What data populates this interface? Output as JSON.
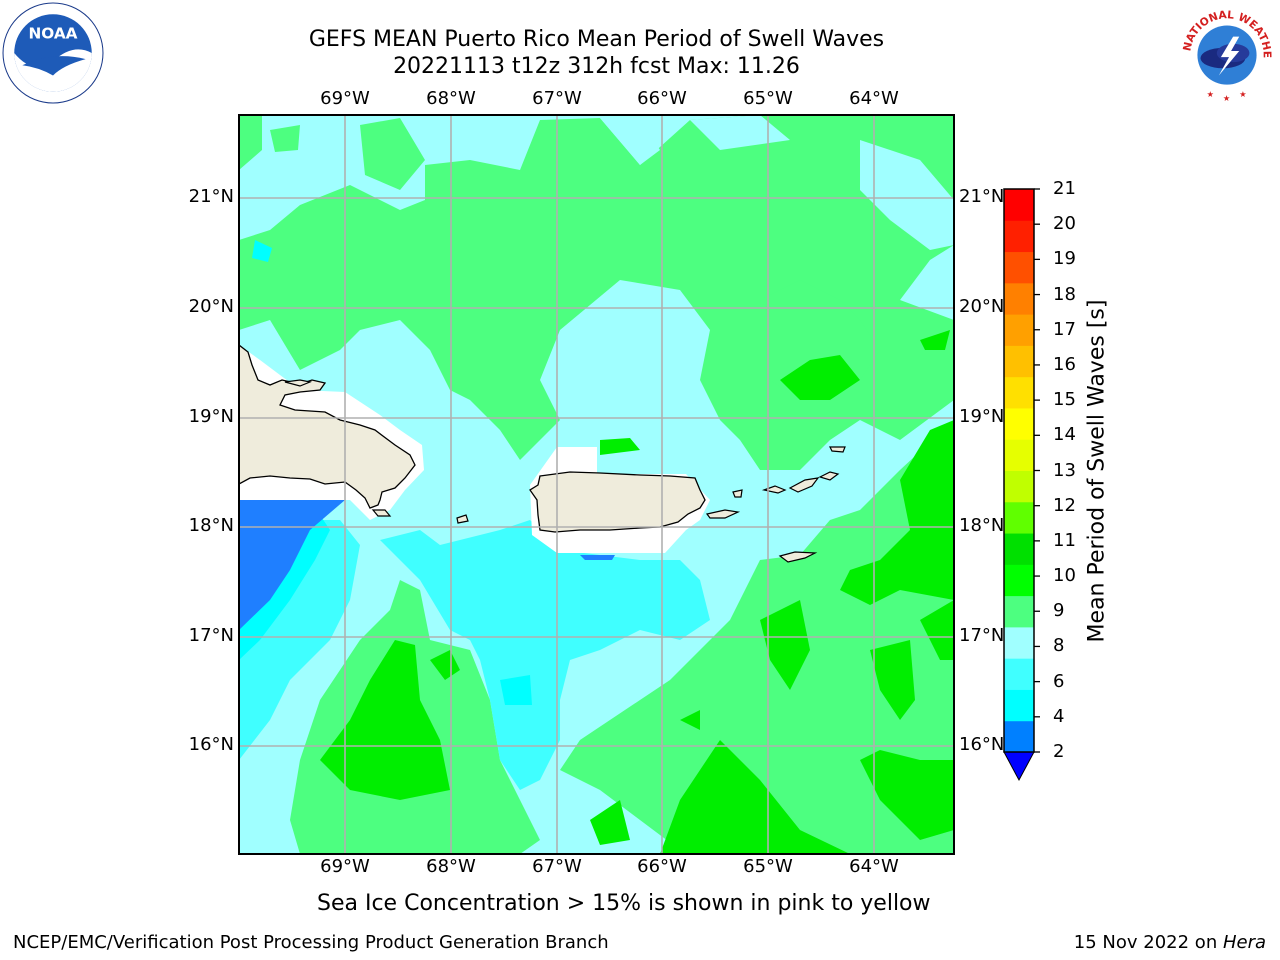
{
  "header": {
    "title_line1": "GEFS MEAN Puerto Rico Mean Period of Swell Waves",
    "title_line2": "20221113 t12z 312h fcst   Max: 11.26"
  },
  "logos": {
    "left": {
      "text": "NOAA",
      "ring_text": "NATIONAL OCEANIC AND ATMOSPHERIC ADMINISTRATION · U.S. DEPARTMENT OF COMMERCE",
      "icon": "noaa-logo"
    },
    "right": {
      "ring_text": "NATIONAL WEATHER SERVICE",
      "icon": "nws-logo"
    }
  },
  "map": {
    "lon_labels": [
      "69°W",
      "68°W",
      "67°W",
      "66°W",
      "65°W",
      "64°W"
    ],
    "lat_labels": [
      "21°N",
      "20°N",
      "19°N",
      "18°N",
      "17°N",
      "16°N"
    ],
    "land_color": "#efecdc",
    "no_data_color": "#ffffff",
    "grid_color": "#b0b0b0"
  },
  "colorbar": {
    "label": "Mean Period of Swell Waves [s]",
    "ticks": [
      "21",
      "20",
      "19",
      "18",
      "17",
      "16",
      "15",
      "14",
      "13",
      "12",
      "11",
      "10",
      "9",
      "8",
      "6",
      "4",
      "2"
    ],
    "colors": [
      "#0000ff",
      "#0080ff",
      "#00ffff",
      "#40ffff",
      "#a0ffff",
      "#4dff80",
      "#00ff00",
      "#00e000",
      "#60ff00",
      "#c0ff00",
      "#e6ff00",
      "#ffff00",
      "#ffe000",
      "#ffc000",
      "#ffa000",
      "#ff8000",
      "#ff5000",
      "#ff2000",
      "#ff0000"
    ]
  },
  "subtitle": "Sea Ice Concentration > 15% is shown in pink to yellow",
  "footer": {
    "left": "NCEP/EMC/Verification Post Processing Product Generation Branch",
    "right_date": "15 Nov 2022 on ",
    "right_machine": "Hera"
  }
}
